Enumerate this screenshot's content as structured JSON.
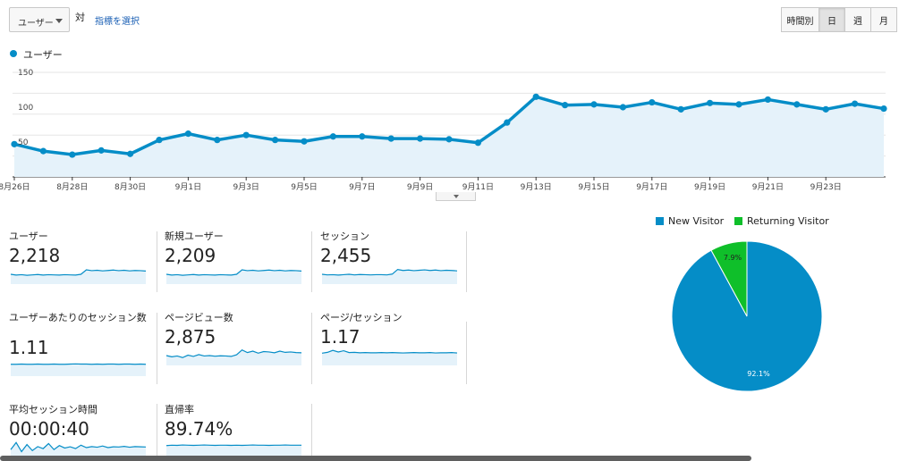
{
  "controls": {
    "metric_selector": "ユーザー",
    "vs_label": "対",
    "select_metric_link": "指標を選択",
    "time_buttons": [
      "時間別",
      "日",
      "週",
      "月"
    ],
    "active_time_button": "日"
  },
  "legend": {
    "series_label": "ユーザー",
    "color": "#058dc7"
  },
  "chart_data": {
    "type": "area",
    "series": [
      {
        "name": "ユーザー",
        "color": "#058dc7",
        "values": [
          47,
          37,
          32,
          38,
          33,
          53,
          62,
          53,
          60,
          53,
          51,
          58,
          58,
          55,
          55,
          54,
          49,
          78,
          115,
          103,
          104,
          100,
          107,
          97,
          106,
          104,
          111,
          104,
          97,
          105,
          98
        ]
      }
    ],
    "x_tick_labels": [
      "8月26日",
      "8月28日",
      "8月30日",
      "9月1日",
      "9月3日",
      "9月5日",
      "9月7日",
      "9月9日",
      "9月11日",
      "9月13日",
      "9月15日",
      "9月17日",
      "9月19日",
      "9月21日",
      "9月23日"
    ],
    "y_ticks": [
      "150",
      "100",
      "50"
    ],
    "ylim": [
      0,
      150
    ],
    "grid": true
  },
  "metrics": [
    {
      "name": "ユーザー",
      "value": "2,218",
      "spark": [
        40,
        36,
        38,
        35,
        37,
        39,
        36,
        38,
        37,
        36,
        38,
        37,
        36,
        40,
        62,
        58,
        60,
        57,
        59,
        61,
        58,
        60,
        57,
        59,
        58,
        56
      ]
    },
    {
      "name": "新規ユーザー",
      "value": "2,209",
      "spark": [
        40,
        36,
        38,
        35,
        37,
        39,
        36,
        38,
        37,
        36,
        38,
        37,
        36,
        40,
        62,
        58,
        60,
        57,
        59,
        61,
        58,
        60,
        57,
        59,
        58,
        56
      ]
    },
    {
      "name": "セッション",
      "value": "2,455",
      "spark": [
        40,
        37,
        38,
        36,
        38,
        40,
        37,
        39,
        38,
        37,
        38,
        38,
        37,
        41,
        64,
        59,
        61,
        58,
        60,
        62,
        59,
        61,
        58,
        60,
        59,
        57
      ]
    },
    {
      "name": "ユーザーあたりのセッション数",
      "value": "1.11",
      "spark": [
        50,
        50,
        51,
        50,
        50,
        51,
        50,
        50,
        51,
        50,
        50,
        51,
        52,
        51,
        51,
        50,
        51,
        50,
        51,
        51,
        50,
        51,
        51,
        50,
        51,
        50
      ]
    },
    {
      "name": "ページビュー数",
      "value": "2,875",
      "spark": [
        40,
        34,
        38,
        30,
        42,
        36,
        45,
        38,
        40,
        37,
        39,
        38,
        36,
        44,
        68,
        55,
        62,
        52,
        60,
        58,
        54,
        62,
        56,
        58,
        55,
        54
      ]
    },
    {
      "name": "ページ/セッション",
      "value": "1.17",
      "spark": [
        52,
        56,
        66,
        58,
        64,
        55,
        56,
        54,
        55,
        54,
        54,
        55,
        54,
        55,
        54,
        53,
        54,
        55,
        54,
        54,
        55,
        53,
        54,
        54,
        55,
        53
      ]
    },
    {
      "name": "平均セッション時間",
      "value": "00:00:40",
      "spark": [
        30,
        65,
        20,
        55,
        25,
        45,
        35,
        60,
        30,
        50,
        38,
        44,
        35,
        52,
        40,
        45,
        42,
        48,
        40,
        44,
        43,
        46,
        42,
        45,
        44,
        43
      ]
    },
    {
      "name": "直帰率",
      "value": "89.74%",
      "spark": [
        50,
        52,
        51,
        53,
        52,
        51,
        52,
        53,
        52,
        51,
        52,
        52,
        51,
        52,
        51,
        52,
        53,
        52,
        52,
        51,
        52,
        52,
        53,
        52,
        52,
        52
      ]
    }
  ],
  "pie": {
    "legend": [
      {
        "label": "New Visitor",
        "color": "#058dc7"
      },
      {
        "label": "Returning Visitor",
        "color": "#0fbf2a"
      }
    ],
    "chart_data": {
      "type": "pie",
      "labels": [
        "New Visitor",
        "Returning Visitor"
      ],
      "values": [
        92.1,
        7.9
      ],
      "value_labels": [
        "92.1%",
        "7.9%"
      ],
      "colors": [
        "#058dc7",
        "#0fbf2a"
      ]
    }
  }
}
